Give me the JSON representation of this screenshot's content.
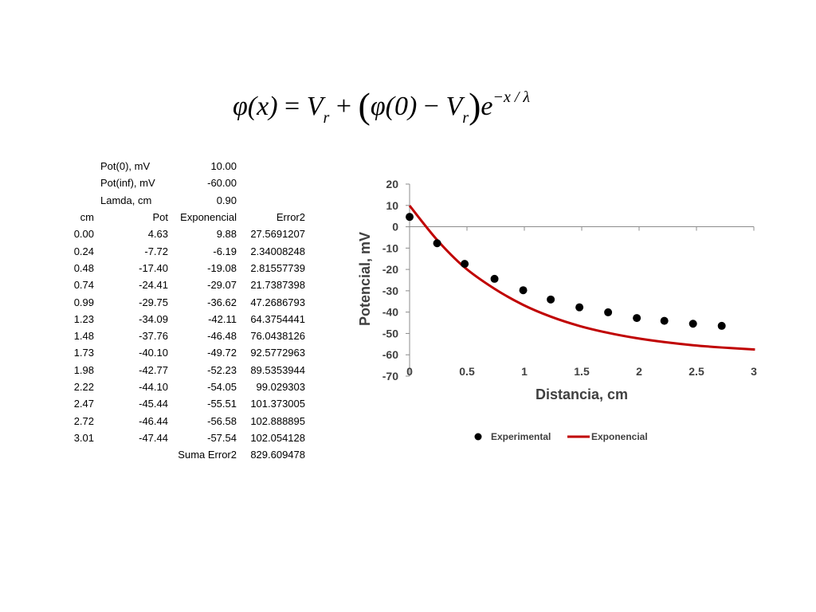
{
  "equation": {
    "lhs": "φ(x)",
    "eq": "=",
    "v": "V",
    "r": "r",
    "plus": "+",
    "paren_open": "(",
    "phi0": "φ(0)",
    "minus": "−",
    "paren_close": ")",
    "e": "e",
    "exponent": "−x / λ"
  },
  "parameters": [
    {
      "label": "Pot(0), mV",
      "value": "10.00"
    },
    {
      "label": "Pot(inf), mV",
      "value": "-60.00"
    },
    {
      "label": "Lamda, cm",
      "value": "0.90"
    }
  ],
  "table": {
    "headers": [
      "cm",
      "Pot",
      "Exponencial",
      "Error2"
    ],
    "rows": [
      [
        "0.00",
        "4.63",
        "9.88",
        "27.5691207"
      ],
      [
        "0.24",
        "-7.72",
        "-6.19",
        "2.34008248"
      ],
      [
        "0.48",
        "-17.40",
        "-19.08",
        "2.81557739"
      ],
      [
        "0.74",
        "-24.41",
        "-29.07",
        "21.7387398"
      ],
      [
        "0.99",
        "-29.75",
        "-36.62",
        "47.2686793"
      ],
      [
        "1.23",
        "-34.09",
        "-42.11",
        "64.3754441"
      ],
      [
        "1.48",
        "-37.76",
        "-46.48",
        "76.0438126"
      ],
      [
        "1.73",
        "-40.10",
        "-49.72",
        "92.5772963"
      ],
      [
        "1.98",
        "-42.77",
        "-52.23",
        "89.5353944"
      ],
      [
        "2.22",
        "-44.10",
        "-54.05",
        "99.029303"
      ],
      [
        "2.47",
        "-45.44",
        "-55.51",
        "101.373005"
      ],
      [
        "2.72",
        "-46.44",
        "-56.58",
        "102.888895"
      ],
      [
        "3.01",
        "-47.44",
        "-57.54",
        "102.054128"
      ]
    ],
    "sum_label": "Suma Error2",
    "sum_value": "829.609478"
  },
  "chart_data": {
    "type": "scatter",
    "title": "",
    "xlabel": "Distancia, cm",
    "ylabel": "Potencial, mV",
    "xlim": [
      0,
      3
    ],
    "ylim": [
      -70,
      20
    ],
    "xticks": [
      0,
      0.5,
      1,
      1.5,
      2,
      2.5,
      3
    ],
    "yticks": [
      20,
      10,
      0,
      -10,
      -20,
      -30,
      -40,
      -50,
      -60,
      -70
    ],
    "grid": false,
    "legend_position": "bottom",
    "series": [
      {
        "name": "Experimental",
        "kind": "scatter",
        "color": "#000000",
        "x": [
          0,
          0.24,
          0.48,
          0.74,
          0.99,
          1.23,
          1.48,
          1.73,
          1.98,
          2.22,
          2.47,
          2.72
        ],
        "y": [
          4.63,
          -7.72,
          -17.4,
          -24.41,
          -29.75,
          -34.09,
          -37.76,
          -40.1,
          -42.77,
          -44.1,
          -45.44,
          -46.44
        ]
      },
      {
        "name": "Exponencial",
        "kind": "line",
        "color": "#c00000",
        "x": [
          0,
          0.24,
          0.48,
          0.74,
          0.99,
          1.23,
          1.48,
          1.73,
          1.98,
          2.22,
          2.47,
          2.72,
          3.01
        ],
        "y": [
          9.88,
          -6.19,
          -19.08,
          -29.07,
          -36.62,
          -42.11,
          -46.48,
          -49.72,
          -52.23,
          -54.05,
          -55.51,
          -56.58,
          -57.54
        ]
      }
    ]
  }
}
